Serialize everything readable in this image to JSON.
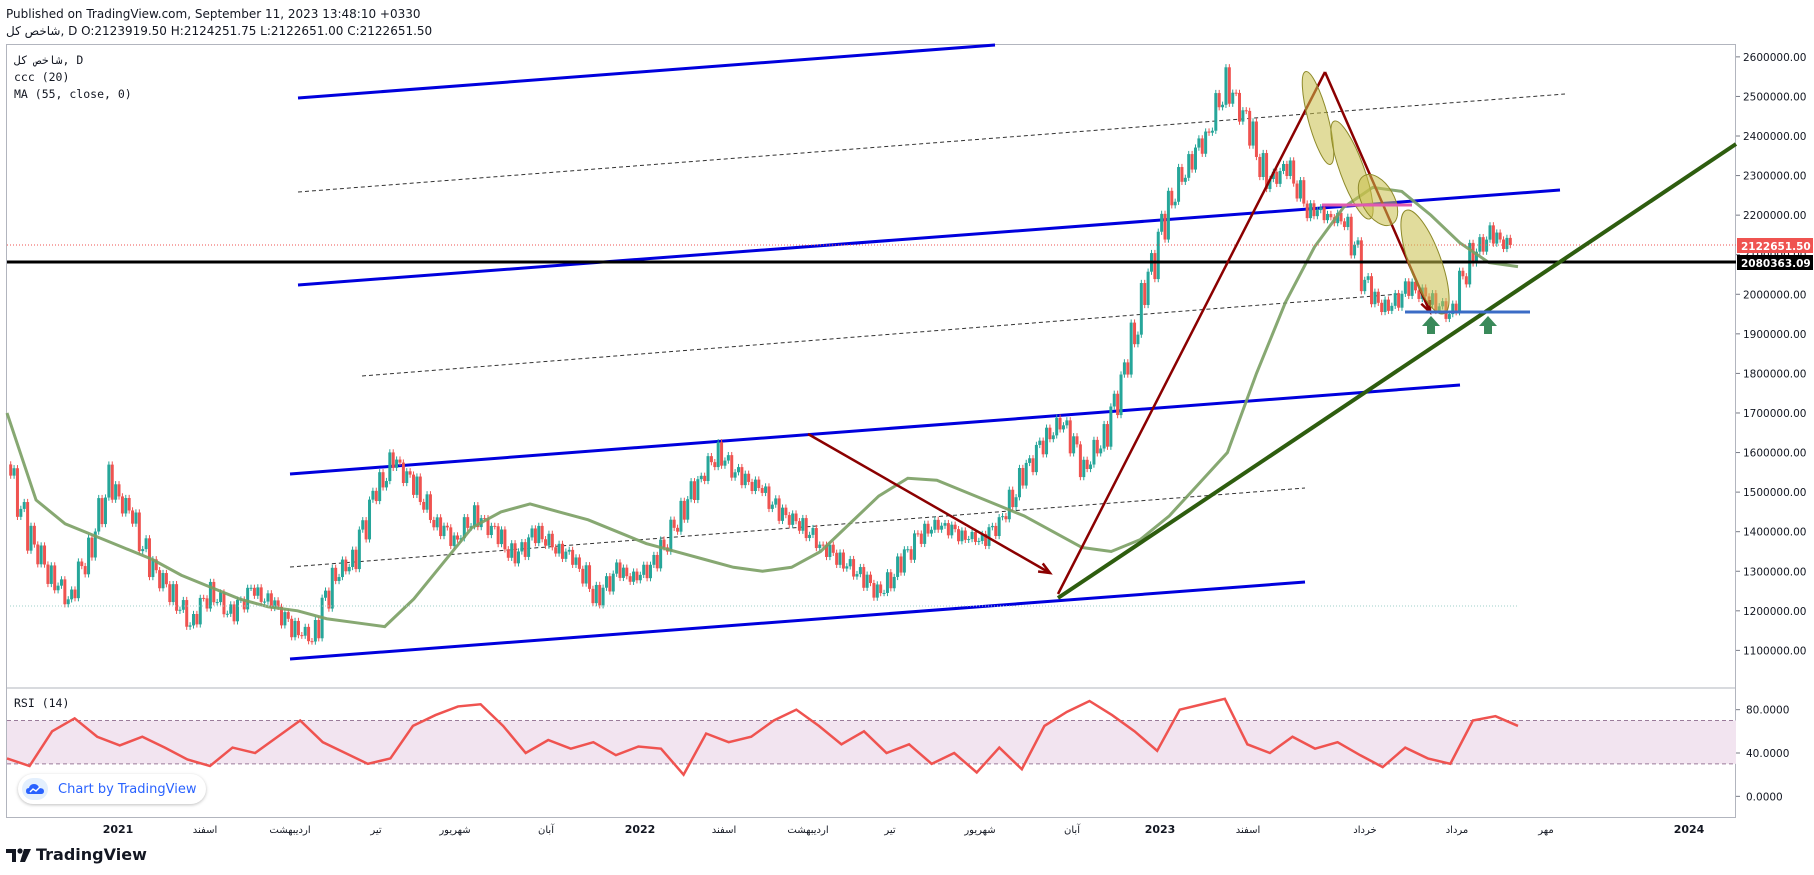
{
  "header": {
    "line1": "Published on TradingView.com, September 11, 2023 13:48:10 +0330",
    "line2": "شاخص کل, D O:2123919.50 H:2124251.75 L:2122651.00 C:2122651.50"
  },
  "legend": {
    "line1": "شاخص کل, D",
    "line2": "ccc (20)",
    "line3": "MA (55, close, 0)"
  },
  "rsi_label": "RSI (14)",
  "badge": {
    "text": "Chart by TradingView",
    "icon": "tradingview-cloud-icon"
  },
  "footer": {
    "logo_text": "TradingView",
    "icon": "tradingview-logo-icon"
  },
  "price_tags": {
    "last_price": "2122651.50",
    "horizontal_line": "2080363.09"
  },
  "colors": {
    "up": "#26a69a",
    "down": "#ef5350",
    "channel": "#0000dd",
    "ma": "#7a9e63",
    "trend": "#8b0000",
    "support": "#2e5d0f",
    "rsi": "#ef5350",
    "rsi_band": "#f2e4f0"
  },
  "chart_data": {
    "type": "line",
    "y_ticks": [
      "2600000.00",
      "2500000.00",
      "2400000.00",
      "2300000.00",
      "2200000.00",
      "2100000.00",
      "2000000.00",
      "1900000.00",
      "1800000.00",
      "1700000.00",
      "1600000.00",
      "1500000.00",
      "1400000.00",
      "1300000.00",
      "1200000.00",
      "1100000.00"
    ],
    "rsi_ticks": [
      "80.0000",
      "40.0000",
      "0.0000"
    ],
    "x_ticks": [
      "2021",
      "اسفند",
      "اردیبهشت",
      "تیر",
      "شهریور",
      "آبان",
      "2022",
      "اسفند",
      "اردیبهشت",
      "تیر",
      "شهریور",
      "آبان",
      "2023",
      "اسفند",
      "خرداد",
      "مرداد",
      "مهر",
      "2024"
    ],
    "ylim": [
      1010000,
      2630000
    ],
    "rsi_ylim": [
      -20,
      100
    ],
    "rsi_band": [
      30,
      70
    ],
    "index_close": [
      1570000,
      1400000,
      1300000,
      1230000,
      1350000,
      1520000,
      1450000,
      1320000,
      1250000,
      1170000,
      1250000,
      1190000,
      1250000,
      1220000,
      1160000,
      1130000,
      1280000,
      1330000,
      1480000,
      1580000,
      1520000,
      1430000,
      1380000,
      1440000,
      1400000,
      1330000,
      1400000,
      1360000,
      1330000,
      1230000,
      1300000,
      1280000,
      1330000,
      1430000,
      1530000,
      1600000,
      1540000,
      1510000,
      1450000,
      1420000,
      1370000,
      1330000,
      1290000,
      1240000,
      1320000,
      1400000,
      1420000,
      1390000,
      1380000,
      1430000,
      1540000,
      1630000,
      1680000,
      1560000,
      1640000,
      1800000,
      2000000,
      2200000,
      2320000,
      2400000,
      2530000,
      2440000,
      2280000,
      2320000,
      2220000,
      2200000,
      2180000,
      2000000,
      1960000,
      2020000,
      1990000,
      1950000,
      2090000,
      2150000,
      2122651
    ],
    "ma55": [
      1700000,
      1480000,
      1420000,
      1390000,
      1360000,
      1330000,
      1290000,
      1260000,
      1230000,
      1210000,
      1200000,
      1180000,
      1170000,
      1160000,
      1230000,
      1320000,
      1410000,
      1450000,
      1470000,
      1450000,
      1430000,
      1400000,
      1370000,
      1350000,
      1330000,
      1310000,
      1300000,
      1310000,
      1350000,
      1420000,
      1490000,
      1535000,
      1530000,
      1500000,
      1470000,
      1440000,
      1400000,
      1360000,
      1350000,
      1380000,
      1440000,
      1520000,
      1600000,
      1800000,
      1980000,
      2120000,
      2220000,
      2270000,
      2260000,
      2200000,
      2130000,
      2080000,
      2070000
    ],
    "rsi14": [
      35,
      28,
      60,
      72,
      55,
      47,
      55,
      45,
      34,
      28,
      45,
      40,
      55,
      70,
      50,
      40,
      30,
      35,
      65,
      75,
      83,
      85,
      65,
      40,
      52,
      44,
      50,
      38,
      46,
      44,
      20,
      58,
      50,
      55,
      70,
      80,
      65,
      48,
      60,
      40,
      48,
      30,
      40,
      22,
      45,
      25,
      65,
      78,
      88,
      75,
      60,
      42,
      80,
      85,
      90,
      48,
      40,
      55,
      44,
      50,
      38,
      27,
      45,
      35,
      30,
      70,
      74,
      65
    ]
  }
}
